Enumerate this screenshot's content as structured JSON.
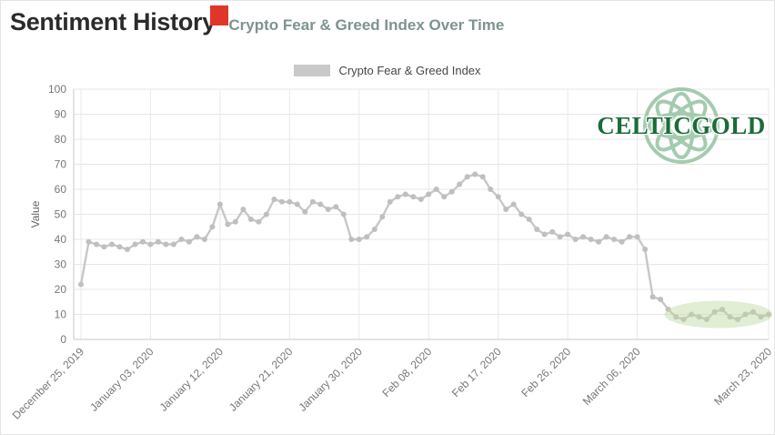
{
  "header": {
    "title": "Sentiment History",
    "subtitle": "Crypto Fear & Greed Index Over Time",
    "red_marker_color": "#e0352b"
  },
  "legend": {
    "label": "Crypto Fear & Greed Index",
    "swatch_color": "#c9c9c9"
  },
  "logo": {
    "text": "CELTICGOLD",
    "text_color": "#1c6b3a",
    "knot_color": "#8fbf9c"
  },
  "chart_data": {
    "type": "line",
    "title": "Sentiment History",
    "series_name": "Crypto Fear & Greed Index",
    "xlabel": "",
    "ylabel": "Value",
    "ylim": [
      0,
      100
    ],
    "y_ticks": [
      0,
      10,
      20,
      30,
      40,
      50,
      60,
      70,
      80,
      90,
      100
    ],
    "grid": true,
    "legend_position": "top",
    "line_color": "#c7c7c7",
    "marker_color": "#bfbfbf",
    "x_unit": "days from December 25, 2019",
    "x_tick_labels": [
      "December 25, 2019",
      "January 03, 2020",
      "January 12, 2020",
      "January 21, 2020",
      "January 30, 2020",
      "Feb 08, 2020",
      "Feb 17, 2020",
      "Feb 26, 2020",
      "March 06, 2020",
      "March 23, 2020"
    ],
    "x_tick_days": [
      0,
      9,
      18,
      27,
      36,
      45,
      54,
      63,
      72,
      89
    ],
    "values": [
      22,
      39,
      38,
      37,
      38,
      37,
      36,
      38,
      39,
      38,
      39,
      38,
      38,
      40,
      39,
      41,
      40,
      45,
      54,
      46,
      47,
      52,
      48,
      47,
      50,
      56,
      55,
      55,
      54,
      51,
      55,
      54,
      52,
      53,
      50,
      40,
      40,
      41,
      44,
      49,
      55,
      57,
      58,
      57,
      56,
      58,
      60,
      57,
      59,
      62,
      65,
      66,
      65,
      60,
      57,
      52,
      54,
      50,
      48,
      44,
      42,
      43,
      41,
      42,
      40,
      41,
      40,
      39,
      41,
      40,
      39,
      41,
      41,
      36,
      17,
      16,
      12,
      9,
      8,
      10,
      9,
      8,
      11,
      12,
      9,
      8,
      10,
      11,
      9,
      10
    ],
    "highlight": {
      "day_start": 76,
      "day_end": 89,
      "value_center": 10,
      "color": "#bcd9a0",
      "opacity": 0.45
    }
  }
}
